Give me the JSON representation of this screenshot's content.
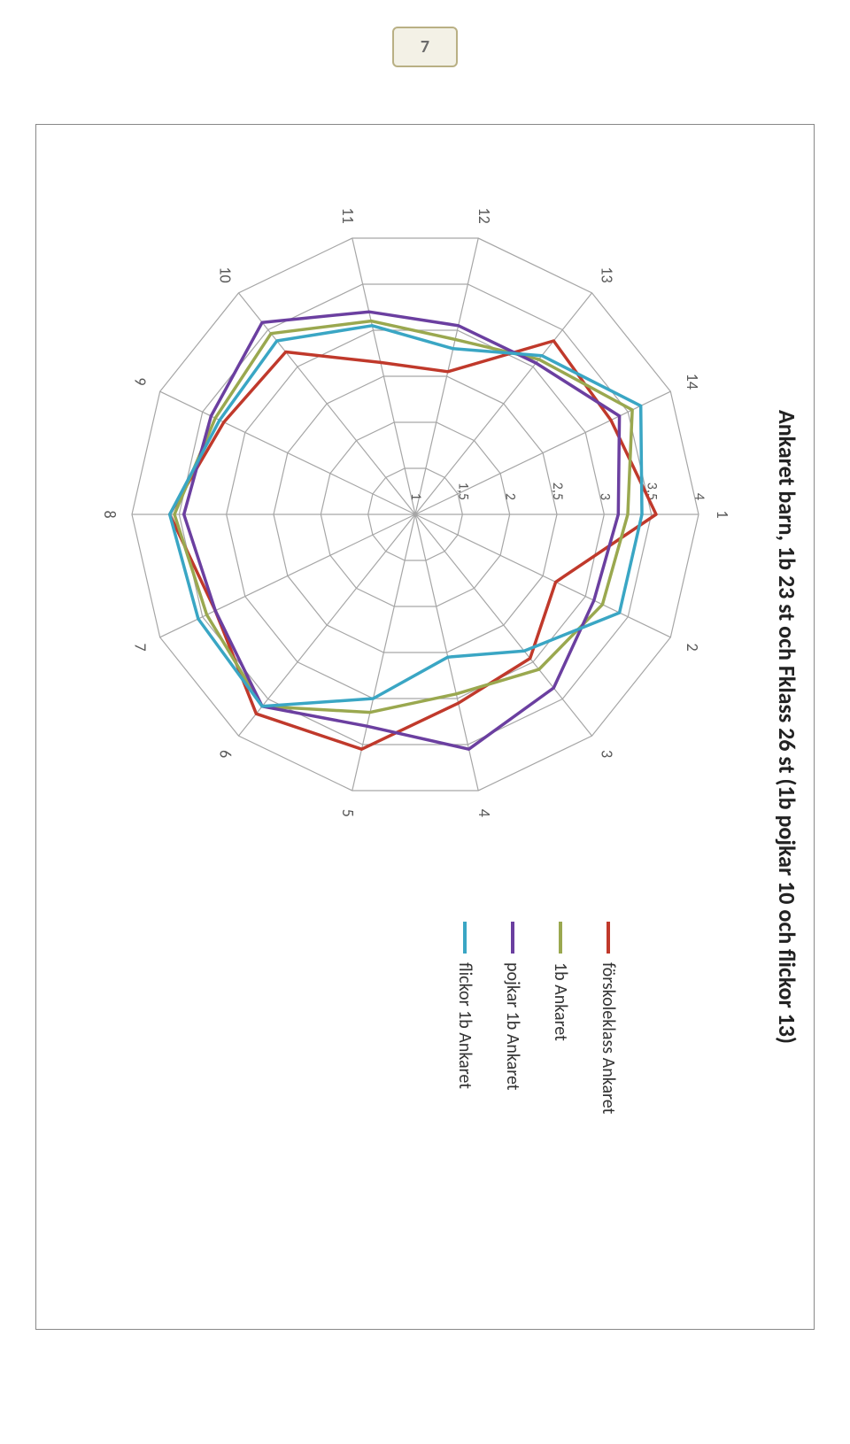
{
  "page_number": "7",
  "chart": {
    "type": "radar",
    "title": "Ankaret barn, 1b 23 st och Fklass 26 st (1b pojkar 10 och flickor 13)",
    "title_fontsize": 26,
    "title_fontweight": "bold",
    "background_color": "#ffffff",
    "border_color": "#888888",
    "grid_color": "#a6a6a6",
    "label_color": "#5a5a5a",
    "label_fontsize": 16,
    "axis_labels": [
      "1",
      "2",
      "3",
      "4",
      "5",
      "6",
      "7",
      "8",
      "9",
      "10",
      "11",
      "12",
      "13",
      "14"
    ],
    "rlim": [
      1,
      4
    ],
    "rticks": [
      1,
      1.5,
      2,
      2.5,
      3,
      3.5,
      4
    ],
    "rtick_labels": [
      "1",
      "1,5",
      "2",
      "2,5",
      "3",
      "3,5",
      "4"
    ],
    "line_width": 3.5,
    "series": [
      {
        "name": "förskoleklass Ankaret",
        "color": "#c0392b",
        "values": [
          3.55,
          2.65,
          2.95,
          3.05,
          3.55,
          3.7,
          3.35,
          3.6,
          3.25,
          3.2,
          2.65,
          2.55,
          3.35,
          3.3
        ]
      },
      {
        "name": "1b Ankaret",
        "color": "#9aa84f",
        "values": [
          3.25,
          3.2,
          3.1,
          2.95,
          3.15,
          3.6,
          3.45,
          3.55,
          3.35,
          3.45,
          3.1,
          2.9,
          3.1,
          3.55
        ]
      },
      {
        "name": "pojkar 1b Ankaret",
        "color": "#6b3fa0",
        "values": [
          3.15,
          3.1,
          3.35,
          3.55,
          3.3,
          3.6,
          3.35,
          3.45,
          3.4,
          3.6,
          3.2,
          3.05,
          3.05,
          3.4
        ]
      },
      {
        "name": "flickor 1b Ankaret",
        "color": "#3aa6c4",
        "values": [
          3.4,
          3.4,
          2.85,
          2.55,
          3.0,
          3.6,
          3.55,
          3.6,
          3.3,
          3.35,
          3.05,
          2.8,
          3.15,
          3.65
        ]
      }
    ]
  }
}
